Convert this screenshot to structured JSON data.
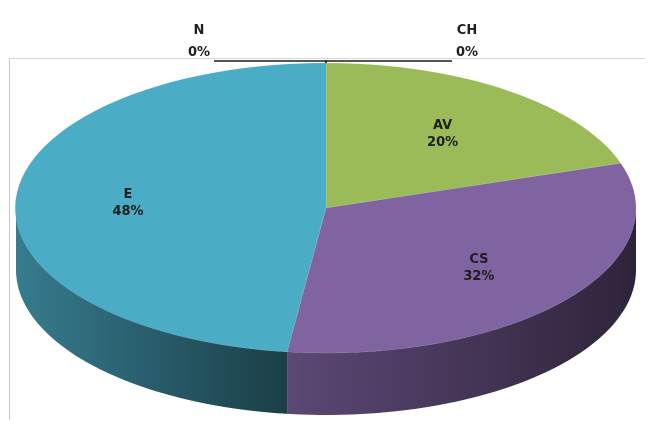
{
  "chart_data": {
    "type": "pie",
    "title": "",
    "three_d": true,
    "legend": "none",
    "categories": [
      "AV",
      "CS",
      "E",
      "N",
      "CH"
    ],
    "values": [
      20,
      32,
      48,
      0,
      0
    ],
    "value_labels": [
      "20%",
      "32%",
      "48%",
      "0%",
      "0%"
    ],
    "colors": [
      "#9bbb59",
      "#8064a2",
      "#4bacc6",
      "#4f81bd",
      "#c0504d"
    ]
  }
}
